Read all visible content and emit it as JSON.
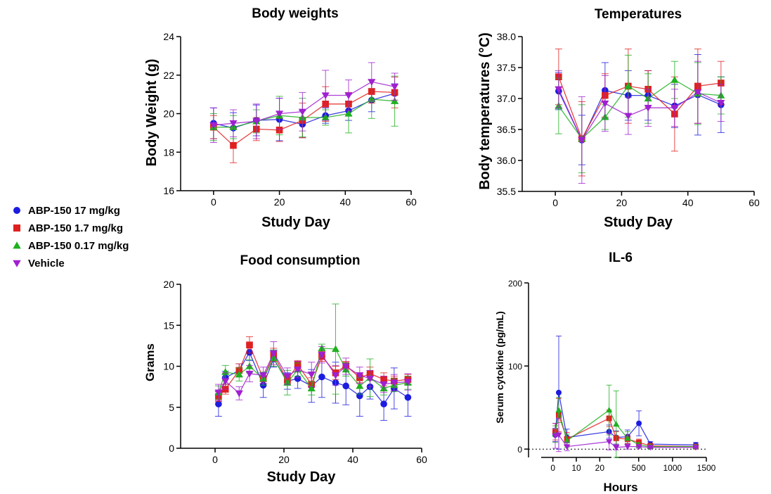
{
  "chart_data": [
    {
      "type": "line",
      "title": "Body weights",
      "xlabel": "Study Day",
      "ylabel": "Body Weight (g)",
      "xlim": [
        -10,
        60
      ],
      "ylim": [
        16,
        24
      ],
      "xticks": [
        0,
        20,
        40,
        60
      ],
      "yticks": [
        16,
        18,
        20,
        22,
        24
      ],
      "xtick_labels": [
        "0",
        "20",
        "40",
        "60"
      ],
      "ytick_labels": [
        "16",
        "18",
        "20",
        "22",
        "24"
      ],
      "x": [
        0,
        6,
        13,
        20,
        27,
        34,
        41,
        48,
        55
      ],
      "series": [
        {
          "name": "ABP-150 17 mg/kg",
          "values": [
            19.5,
            19.25,
            19.65,
            19.7,
            19.45,
            19.9,
            20.15,
            20.7,
            21.05
          ],
          "err": [
            0.8,
            0.8,
            0.8,
            1.1,
            0.7,
            0.4,
            0.5,
            0.6,
            0.5
          ]
        },
        {
          "name": "ABP-150 1.7 mg/kg",
          "values": [
            19.3,
            18.35,
            19.2,
            19.15,
            19.65,
            20.5,
            20.5,
            21.15,
            21.1
          ],
          "err": [
            0.6,
            0.9,
            0.6,
            0.6,
            0.9,
            0.9,
            0.6,
            0.6,
            0.8
          ]
        },
        {
          "name": "ABP-150 0.17 mg/kg",
          "values": [
            19.3,
            19.3,
            19.6,
            19.9,
            19.8,
            19.8,
            20.0,
            20.75,
            20.65
          ],
          "err": [
            0.7,
            0.6,
            0.6,
            1.0,
            1.0,
            0.4,
            1.0,
            1.0,
            1.3
          ]
        },
        {
          "name": "Vehicle",
          "values": [
            19.4,
            19.5,
            19.6,
            20.0,
            20.1,
            20.95,
            20.95,
            21.65,
            21.4
          ],
          "err": [
            0.9,
            0.7,
            0.9,
            0.8,
            1.0,
            1.3,
            0.8,
            1.0,
            0.7
          ]
        }
      ]
    },
    {
      "type": "line",
      "title": "Temperatures",
      "xlabel": "Study Day",
      "ylabel": "Body temperatures (°C)",
      "xlim": [
        -10,
        60
      ],
      "ylim": [
        35.5,
        38.0
      ],
      "xticks": [
        0,
        20,
        40,
        60
      ],
      "yticks": [
        35.5,
        36.0,
        36.5,
        37.0,
        37.5,
        38.0
      ],
      "xtick_labels": [
        "0",
        "20",
        "40",
        "60"
      ],
      "ytick_labels": [
        "35.5",
        "36.0",
        "36.5",
        "37.0",
        "37.5",
        "38.0"
      ],
      "x": [
        1,
        8,
        15,
        22,
        28,
        36,
        43,
        50
      ],
      "series": [
        {
          "name": "ABP-150 17 mg/kg",
          "values": [
            37.12,
            36.33,
            37.13,
            37.05,
            37.05,
            36.88,
            37.06,
            36.9
          ],
          "err": [
            0.3,
            0.4,
            0.45,
            0.4,
            0.4,
            0.35,
            0.65,
            0.45
          ]
        },
        {
          "name": "ABP-150 1.7 mg/kg",
          "values": [
            37.35,
            36.35,
            37.05,
            37.2,
            37.15,
            36.75,
            37.2,
            37.25
          ],
          "err": [
            0.45,
            0.6,
            0.35,
            0.6,
            0.3,
            0.6,
            0.6,
            0.35
          ]
        },
        {
          "name": "ABP-150 0.17 mg/kg",
          "values": [
            36.88,
            36.35,
            36.7,
            37.2,
            37.0,
            37.3,
            37.08,
            37.05
          ],
          "err": [
            0.45,
            0.55,
            0.2,
            0.5,
            0.4,
            0.3,
            0.5,
            0.3
          ]
        },
        {
          "name": "Vehicle",
          "values": [
            37.15,
            36.33,
            36.92,
            36.72,
            36.85,
            36.85,
            37.1,
            36.93
          ],
          "err": [
            0.3,
            0.7,
            0.45,
            0.3,
            0.3,
            0.3,
            0.5,
            0.3
          ]
        }
      ]
    },
    {
      "type": "line",
      "title": "Food consumption",
      "xlabel": "Study Day",
      "ylabel": "Grams",
      "xlim": [
        -10,
        60
      ],
      "ylim": [
        0,
        20
      ],
      "xticks": [
        0,
        20,
        40,
        60
      ],
      "yticks": [
        0,
        5,
        10,
        15,
        20
      ],
      "xtick_labels": [
        "0",
        "20",
        "40",
        "60"
      ],
      "ytick_labels": [
        "0",
        "5",
        "10",
        "15",
        "20"
      ],
      "x": [
        1,
        3,
        7,
        10,
        14,
        17,
        21,
        24,
        28,
        31,
        35,
        38,
        42,
        45,
        49,
        52,
        56
      ],
      "series": [
        {
          "name": "ABP-150 17 mg/kg",
          "values": [
            5.4,
            8.6,
            9.5,
            11.7,
            7.7,
            10.9,
            8.2,
            8.5,
            7.6,
            8.7,
            8.0,
            7.6,
            6.4,
            7.5,
            5.4,
            7.3,
            6.2
          ],
          "err": [
            1.5,
            0.8,
            0.8,
            1.0,
            1.5,
            1.0,
            1.0,
            1.2,
            2.0,
            2.5,
            2.5,
            2.3,
            2.5,
            1.5,
            2.0,
            2.5,
            2.3
          ]
        },
        {
          "name": "ABP-150 1.7 mg/kg",
          "values": [
            6.3,
            7.2,
            9.5,
            12.6,
            8.5,
            11.4,
            8.3,
            10.2,
            7.8,
            11.2,
            9.2,
            10.1,
            8.6,
            9.1,
            8.4,
            8.2,
            8.4
          ],
          "err": [
            0.6,
            0.6,
            0.8,
            1.0,
            0.6,
            0.8,
            0.5,
            0.5,
            0.8,
            0.6,
            0.8,
            0.5,
            0.6,
            0.8,
            0.8,
            0.6,
            0.6
          ]
        },
        {
          "name": "ABP-150 0.17 mg/kg",
          "values": [
            6.8,
            9.3,
            9.0,
            10.0,
            8.5,
            11.0,
            8.0,
            9.6,
            7.3,
            12.2,
            12.1,
            9.6,
            7.6,
            8.6,
            7.3,
            7.7,
            8.0
          ],
          "err": [
            0.8,
            0.8,
            0.8,
            0.8,
            0.8,
            1.0,
            1.5,
            0.8,
            0.8,
            0.5,
            5.5,
            0.8,
            1.0,
            2.3,
            0.8,
            0.8,
            0.8
          ]
        },
        {
          "name": "Vehicle",
          "values": [
            6.8,
            8.2,
            6.7,
            9.1,
            8.9,
            11.6,
            8.8,
            9.6,
            9.0,
            11.4,
            8.9,
            10.0,
            8.9,
            8.5,
            7.8,
            8.0,
            8.1
          ],
          "err": [
            1.0,
            1.0,
            0.8,
            1.0,
            1.0,
            1.4,
            1.0,
            1.0,
            1.5,
            1.0,
            1.2,
            1.0,
            1.0,
            1.0,
            1.0,
            1.0,
            1.0
          ]
        }
      ]
    },
    {
      "type": "line",
      "title": "IL-6",
      "xlabel": "Hours",
      "ylabel": "Serum cytokine (pg/mL)",
      "ylim": [
        -10,
        200
      ],
      "yticks": [
        0,
        100,
        200
      ],
      "ytick_labels": [
        "0",
        "100",
        "200"
      ],
      "xaxis_segments": [
        {
          "xlim": [
            -5,
            25
          ],
          "xticks": [
            0,
            10,
            20
          ],
          "xtick_labels": [
            "0",
            "10",
            "20"
          ]
        },
        {
          "xlim": [
            150,
            1500
          ],
          "xticks": [
            500,
            1000,
            1500
          ],
          "xtick_labels": [
            "500",
            "1000",
            "1500"
          ]
        }
      ],
      "reference_line": 0,
      "x": [
        1,
        2.5,
        6,
        24,
        168,
        336,
        504,
        672,
        1344
      ],
      "series": [
        {
          "name": "ABP-150 17 mg/kg",
          "values": [
            17,
            68,
            14,
            21,
            14,
            15,
            31,
            6,
            5
          ],
          "err": [
            8,
            68,
            10,
            8,
            8,
            8,
            15,
            3,
            3
          ]
        },
        {
          "name": "ABP-150 1.7 mg/kg",
          "values": [
            21,
            41,
            12,
            37,
            13,
            12,
            8,
            4,
            3
          ],
          "err": [
            10,
            20,
            8,
            10,
            8,
            5,
            4,
            2,
            2
          ]
        },
        {
          "name": "ABP-150 0.17 mg/kg",
          "values": [
            18,
            47,
            10,
            47,
            30,
            13,
            5,
            3,
            3
          ],
          "err": [
            10,
            15,
            8,
            30,
            40,
            8,
            3,
            2,
            2
          ]
        },
        {
          "name": "Vehicle",
          "values": [
            16,
            17,
            3,
            9,
            2,
            3,
            3,
            2,
            2
          ],
          "err": [
            15,
            20,
            5,
            10,
            3,
            3,
            2,
            1,
            1
          ]
        }
      ]
    }
  ],
  "legend": {
    "placement": "left",
    "items": [
      {
        "label": "ABP-150 17 mg/kg",
        "marker": "circle",
        "color": "#1c1ce0"
      },
      {
        "label": "ABP-150 1.7 mg/kg",
        "marker": "square",
        "color": "#e02020"
      },
      {
        "label": "ABP-150 0.17 mg/kg",
        "marker": "triangle-up",
        "color": "#20b020"
      },
      {
        "label": "Vehicle",
        "marker": "triangle-down",
        "color": "#a020d0"
      }
    ]
  }
}
